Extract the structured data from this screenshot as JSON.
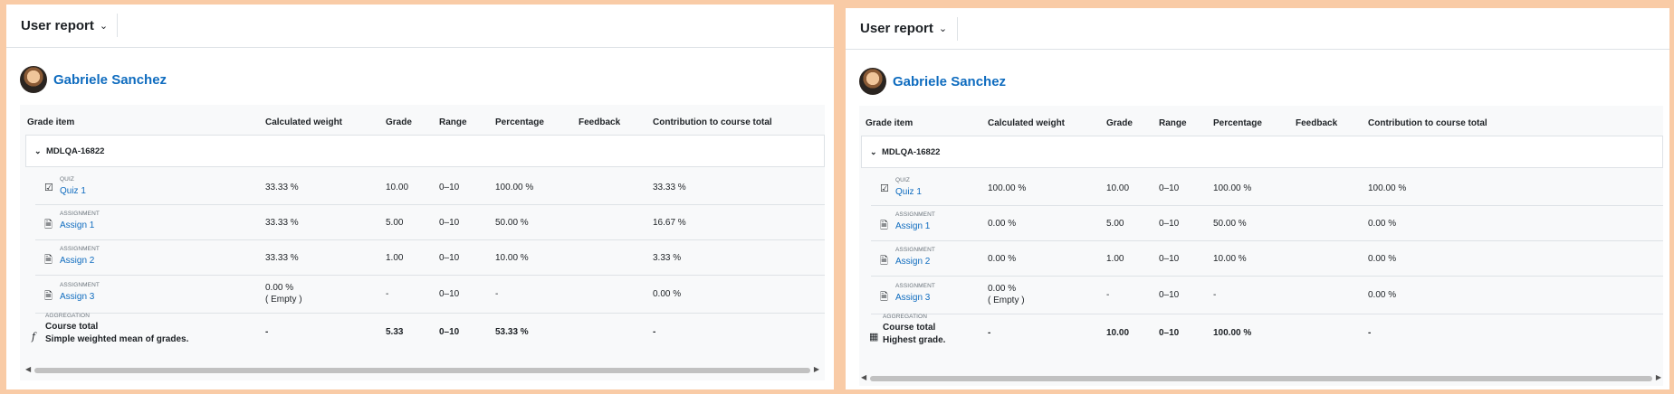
{
  "panels": [
    {
      "header_title": "User report",
      "user_name": "Gabriele Sanchez",
      "columns": {
        "grade_item": "Grade item",
        "weight": "Calculated weight",
        "grade": "Grade",
        "range": "Range",
        "percentage": "Percentage",
        "feedback": "Feedback",
        "contribution": "Contribution to course total"
      },
      "category": "MDLQA-16822",
      "items": [
        {
          "type": "QUIZ",
          "name": "Quiz 1",
          "weight": "33.33 %",
          "weight2": "",
          "grade": "10.00",
          "range": "0–10",
          "percentage": "100.00 %",
          "contribution": "33.33 %"
        },
        {
          "type": "ASSIGNMENT",
          "name": "Assign 1",
          "weight": "33.33 %",
          "weight2": "",
          "grade": "5.00",
          "range": "0–10",
          "percentage": "50.00 %",
          "contribution": "16.67 %"
        },
        {
          "type": "ASSIGNMENT",
          "name": "Assign 2",
          "weight": "33.33 %",
          "weight2": "",
          "grade": "1.00",
          "range": "0–10",
          "percentage": "10.00 %",
          "contribution": "3.33 %"
        },
        {
          "type": "ASSIGNMENT",
          "name": "Assign 3",
          "weight": "0.00 %",
          "weight2": "( Empty )",
          "grade": "-",
          "range": "0–10",
          "percentage": "-",
          "contribution": "0.00 %"
        }
      ],
      "total": {
        "type": "AGGREGATION",
        "name": "Course total",
        "desc": "Simple weighted mean of grades.",
        "weight": "-",
        "grade": "5.33",
        "range": "0–10",
        "percentage": "53.33 %",
        "contribution": "-"
      }
    },
    {
      "header_title": "User report",
      "user_name": "Gabriele Sanchez",
      "columns": {
        "grade_item": "Grade item",
        "weight": "Calculated weight",
        "grade": "Grade",
        "range": "Range",
        "percentage": "Percentage",
        "feedback": "Feedback",
        "contribution": "Contribution to course total"
      },
      "category": "MDLQA-16822",
      "items": [
        {
          "type": "QUIZ",
          "name": "Quiz 1",
          "weight": "100.00 %",
          "weight2": "",
          "grade": "10.00",
          "range": "0–10",
          "percentage": "100.00 %",
          "contribution": "100.00 %"
        },
        {
          "type": "ASSIGNMENT",
          "name": "Assign 1",
          "weight": "0.00 %",
          "weight2": "",
          "grade": "5.00",
          "range": "0–10",
          "percentage": "50.00 %",
          "contribution": "0.00 %"
        },
        {
          "type": "ASSIGNMENT",
          "name": "Assign 2",
          "weight": "0.00 %",
          "weight2": "",
          "grade": "1.00",
          "range": "0–10",
          "percentage": "10.00 %",
          "contribution": "0.00 %"
        },
        {
          "type": "ASSIGNMENT",
          "name": "Assign 3",
          "weight": "0.00 %",
          "weight2": "( Empty )",
          "grade": "-",
          "range": "0–10",
          "percentage": "-",
          "contribution": "0.00 %"
        }
      ],
      "total": {
        "type": "AGGREGATION",
        "name": "Course total",
        "desc": "Highest grade.",
        "weight": "-",
        "grade": "10.00",
        "range": "0–10",
        "percentage": "100.00 %",
        "contribution": "-"
      }
    }
  ]
}
